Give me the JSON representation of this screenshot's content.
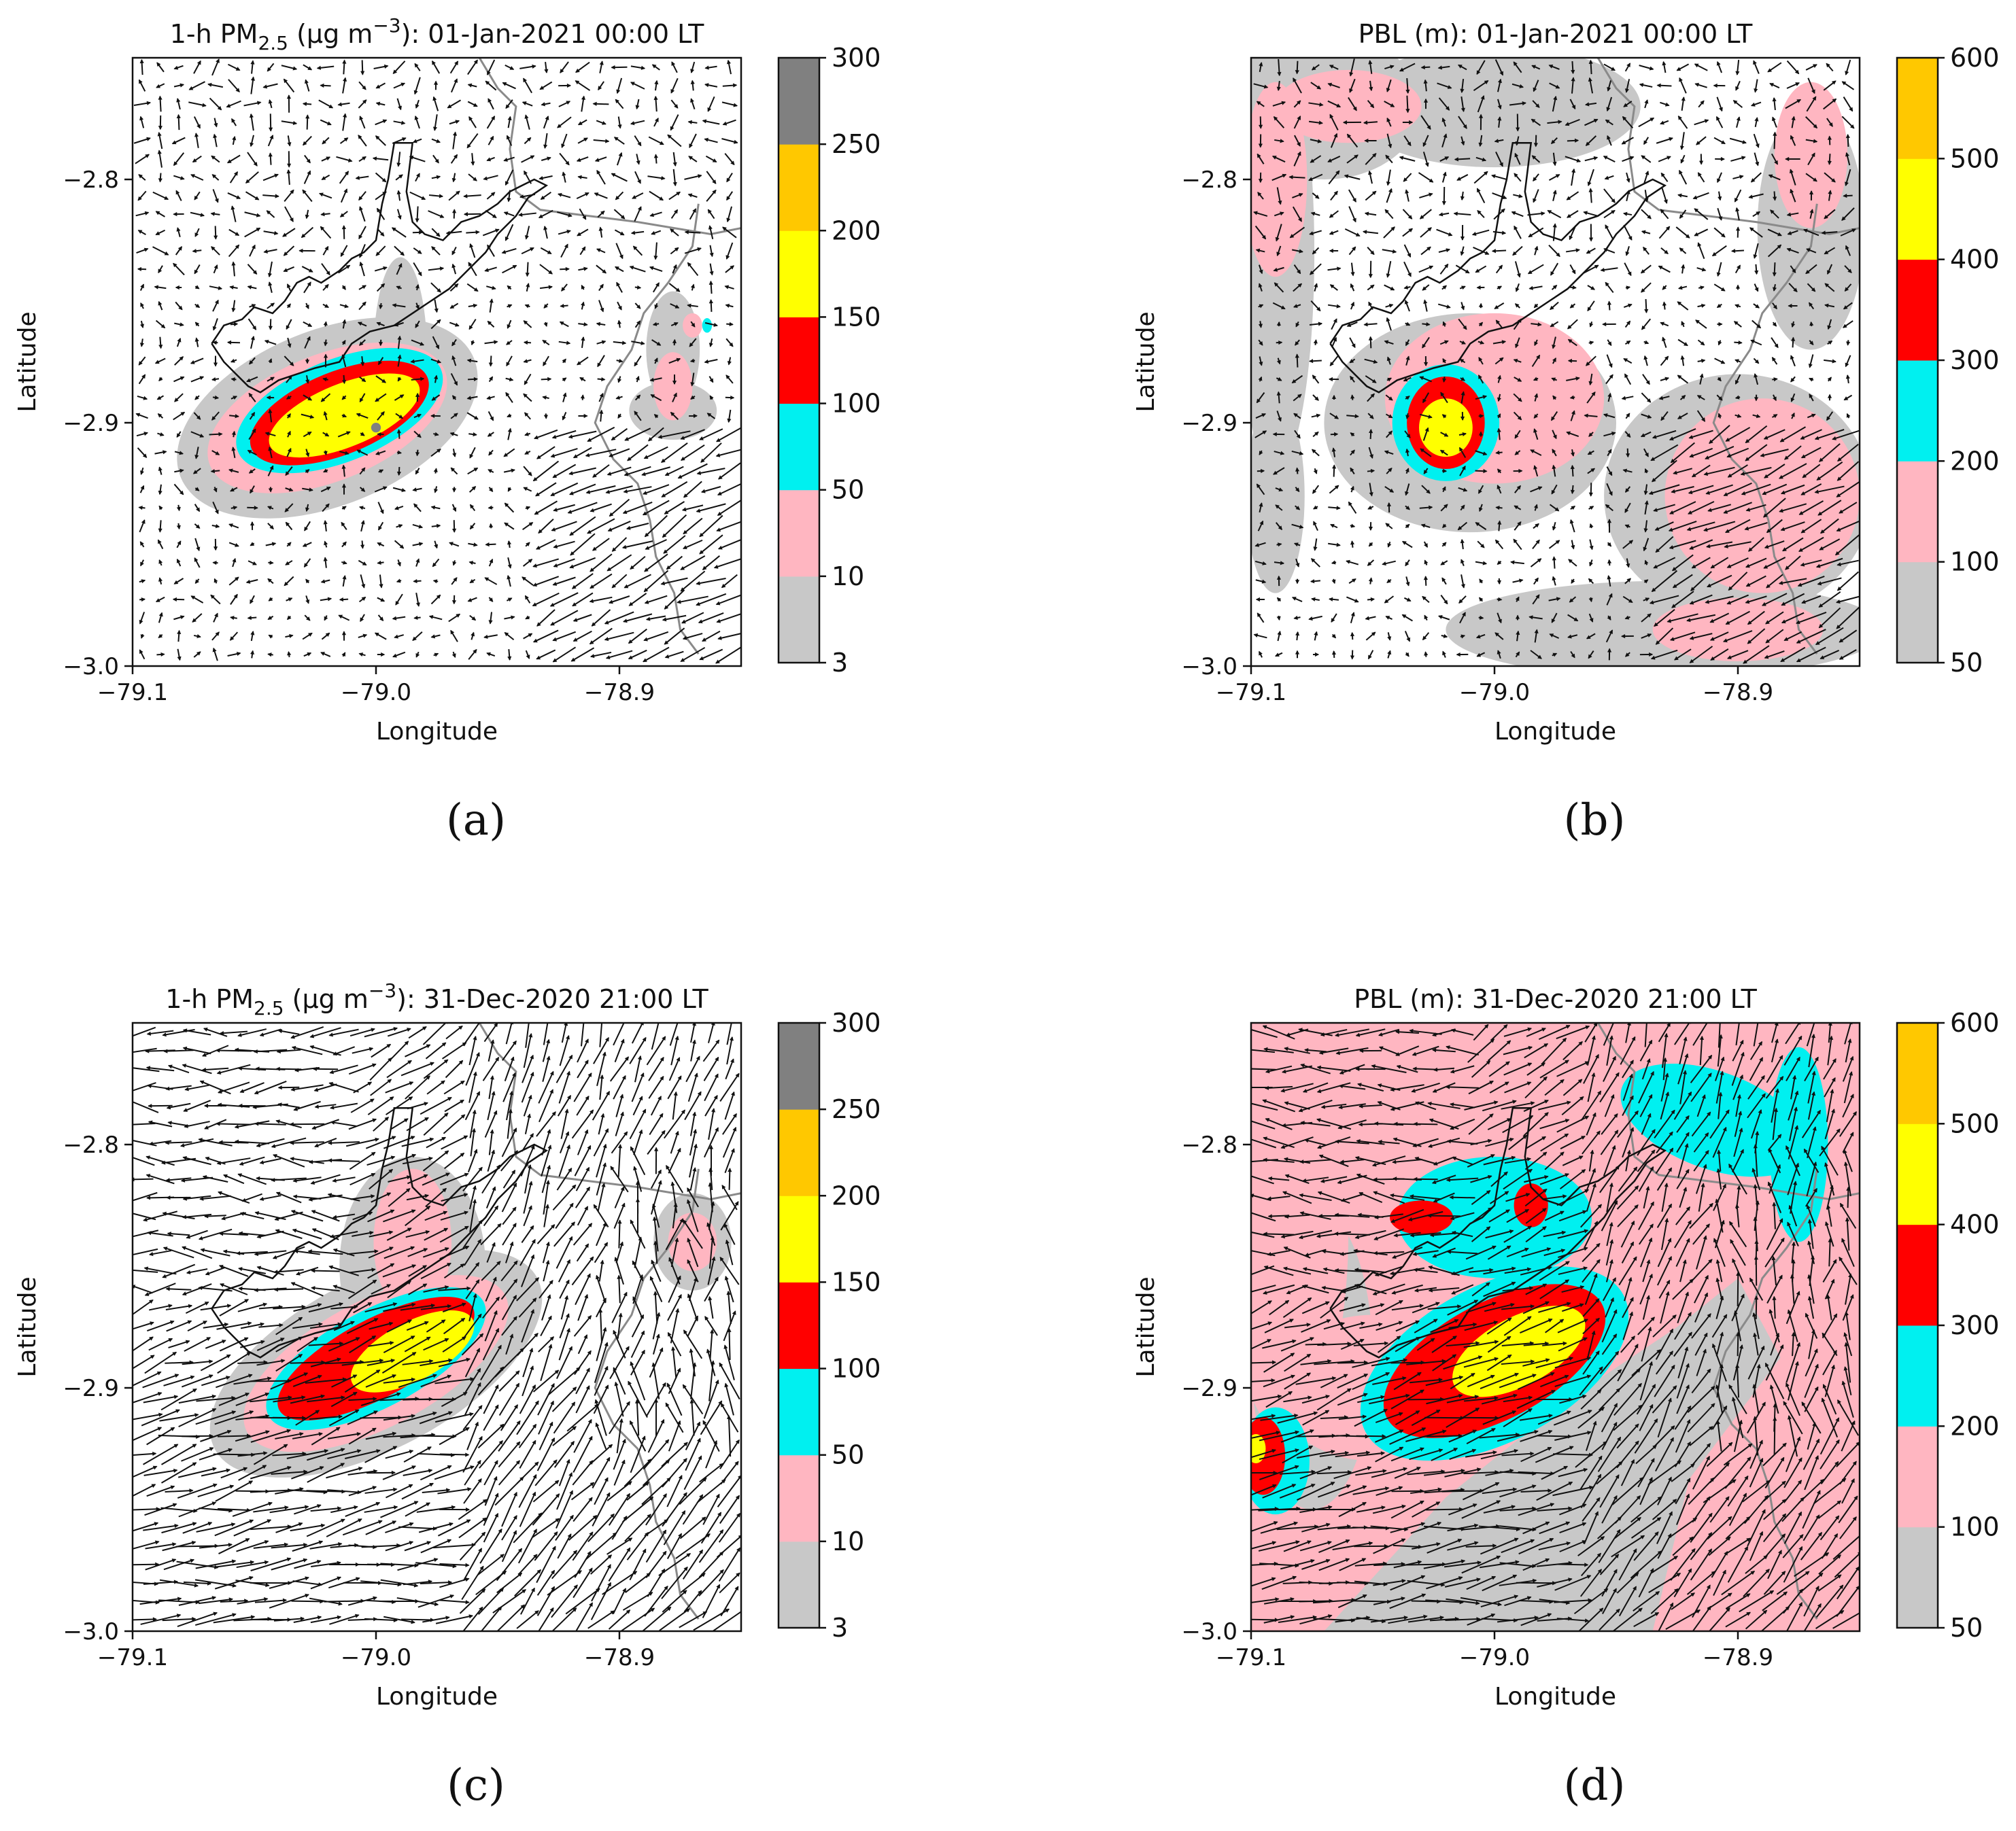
{
  "panels": [
    {
      "id": "a",
      "caption": "(a)",
      "title": {
        "prefix": "1-h PM",
        "sub": "2.5",
        "mid": " (µg m",
        "sup": "−3",
        "suffix": "): 01-Jan-2021 00:00 LT"
      },
      "variable": "PM2.5",
      "colorbar": {
        "ticks": [
          "300",
          "250",
          "200",
          "150",
          "100",
          "50",
          "10",
          "3"
        ],
        "colors": [
          "#c8c8c8",
          "#ffb6c1",
          "#00f0f0",
          "#ff0000",
          "#ffff00",
          "#ffc800",
          "#808080"
        ]
      }
    },
    {
      "id": "b",
      "caption": "(b)",
      "title": {
        "prefix": "PBL (m): 01-Jan-2021 00:00 LT",
        "sub": "",
        "mid": "",
        "sup": "",
        "suffix": ""
      },
      "variable": "PBL",
      "colorbar": {
        "ticks": [
          "600",
          "500",
          "400",
          "300",
          "200",
          "100",
          "50"
        ],
        "colors": [
          "#c8c8c8",
          "#ffb6c1",
          "#00f0f0",
          "#ff0000",
          "#ffff00",
          "#ffc800"
        ]
      }
    },
    {
      "id": "c",
      "caption": "(c)",
      "title": {
        "prefix": "1-h PM",
        "sub": "2.5",
        "mid": " (µg m",
        "sup": "−3",
        "suffix": "): 31-Dec-2020 21:00 LT"
      },
      "variable": "PM2.5",
      "colorbar": {
        "ticks": [
          "300",
          "250",
          "200",
          "150",
          "100",
          "50",
          "10",
          "3"
        ],
        "colors": [
          "#c8c8c8",
          "#ffb6c1",
          "#00f0f0",
          "#ff0000",
          "#ffff00",
          "#ffc800",
          "#808080"
        ]
      }
    },
    {
      "id": "d",
      "caption": "(d)",
      "title": {
        "prefix": "PBL (m): 31-Dec-2020 21:00 LT",
        "sub": "",
        "mid": "",
        "sup": "",
        "suffix": ""
      },
      "variable": "PBL",
      "colorbar": {
        "ticks": [
          "600",
          "500",
          "400",
          "300",
          "200",
          "100",
          "50"
        ],
        "colors": [
          "#c8c8c8",
          "#ffb6c1",
          "#00f0f0",
          "#ff0000",
          "#ffff00",
          "#ffc800"
        ]
      }
    }
  ],
  "chart_data": [
    {
      "type": "heatmap",
      "panel": "a",
      "title": "1-h PM2.5 (µg m−3): 01-Jan-2021 00:00 LT",
      "xlabel": "Longitude",
      "ylabel": "Latitude",
      "xlim": [
        -79.1,
        -78.85
      ],
      "ylim": [
        -3.0,
        -2.75
      ],
      "xticks": [
        -79.1,
        -79.0,
        -78.9
      ],
      "xtick_labels": [
        "−79.1",
        "−79.0",
        "−78.9"
      ],
      "yticks": [
        -3.0,
        -2.9,
        -2.8
      ],
      "ytick_labels": [
        "−3.0",
        "−2.9",
        "−2.8"
      ],
      "colorbar_levels": [
        3,
        10,
        50,
        100,
        150,
        200,
        250,
        300
      ],
      "wind": "weak",
      "pbl_tone": false,
      "blobs": [
        {
          "lon": -78.99,
          "lat": -2.872,
          "rlon": 0.011,
          "rlat": 0.04,
          "value": 8
        },
        {
          "lon": -79.02,
          "lat": -2.898,
          "rlon": 0.065,
          "rlat": 0.036,
          "value": 7,
          "angle": -22
        },
        {
          "lon": -78.878,
          "lat": -2.895,
          "rlon": 0.018,
          "rlat": 0.012,
          "value": 8
        },
        {
          "lon": -78.878,
          "lat": -2.87,
          "rlon": 0.011,
          "rlat": 0.024,
          "value": 8
        },
        {
          "lon": -79.02,
          "lat": -2.898,
          "rlon": 0.052,
          "rlat": 0.026,
          "value": 30,
          "angle": -22
        },
        {
          "lon": -78.878,
          "lat": -2.885,
          "rlon": 0.008,
          "rlat": 0.014,
          "value": 30
        },
        {
          "lon": -78.87,
          "lat": -2.86,
          "rlon": 0.004,
          "rlat": 0.005,
          "value": 30
        },
        {
          "lon": -79.015,
          "lat": -2.895,
          "rlon": 0.045,
          "rlat": 0.021,
          "value": 70,
          "angle": -22
        },
        {
          "lon": -78.864,
          "lat": -2.86,
          "rlon": 0.002,
          "rlat": 0.003,
          "value": 70
        },
        {
          "lon": -79.015,
          "lat": -2.896,
          "rlon": 0.039,
          "rlat": 0.017,
          "value": 120,
          "angle": -22
        },
        {
          "lon": -79.013,
          "lat": -2.897,
          "rlon": 0.033,
          "rlat": 0.013,
          "value": 170,
          "angle": -22
        },
        {
          "lon": -79.0,
          "lat": -2.902,
          "rlon": 0.002,
          "rlat": 0.002,
          "value": 275
        }
      ]
    },
    {
      "type": "heatmap",
      "panel": "b",
      "title": "PBL (m): 01-Jan-2021 00:00 LT",
      "xlabel": "Longitude",
      "ylabel": "Latitude",
      "xlim": [
        -79.1,
        -78.85
      ],
      "ylim": [
        -3.0,
        -2.75
      ],
      "xticks": [
        -79.1,
        -79.0,
        -78.9
      ],
      "xtick_labels": [
        "−79.1",
        "−79.0",
        "−78.9"
      ],
      "yticks": [
        -3.0,
        -2.9,
        -2.8
      ],
      "ytick_labels": [
        "−3.0",
        "−2.9",
        "−2.8"
      ],
      "colorbar_levels": [
        50,
        100,
        200,
        300,
        400,
        500,
        600
      ],
      "wind": "weak",
      "pbl_tone": false,
      "blobs": [
        {
          "lon": -79.09,
          "lat": -2.83,
          "rlon": 0.016,
          "rlat": 0.09,
          "value": 80
        },
        {
          "lon": -79.07,
          "lat": -2.77,
          "rlon": 0.04,
          "rlat": 0.03,
          "value": 80
        },
        {
          "lon": -79.0,
          "lat": -2.77,
          "rlon": 0.06,
          "rlat": 0.025,
          "value": 80
        },
        {
          "lon": -78.87,
          "lat": -2.82,
          "rlon": 0.022,
          "rlat": 0.05,
          "value": 80
        },
        {
          "lon": -78.9,
          "lat": -2.93,
          "rlon": 0.055,
          "rlat": 0.05,
          "value": 80
        },
        {
          "lon": -79.01,
          "lat": -2.9,
          "rlon": 0.06,
          "rlat": 0.045,
          "value": 80
        },
        {
          "lon": -78.93,
          "lat": -2.985,
          "rlon": 0.09,
          "rlat": 0.02,
          "value": 80
        },
        {
          "lon": -79.09,
          "lat": -2.93,
          "rlon": 0.012,
          "rlat": 0.04,
          "value": 80
        },
        {
          "lon": -79.09,
          "lat": -2.8,
          "rlon": 0.013,
          "rlat": 0.04,
          "value": 150
        },
        {
          "lon": -79.06,
          "lat": -2.77,
          "rlon": 0.03,
          "rlat": 0.015,
          "value": 150
        },
        {
          "lon": -78.87,
          "lat": -2.79,
          "rlon": 0.015,
          "rlat": 0.03,
          "value": 150
        },
        {
          "lon": -78.89,
          "lat": -2.93,
          "rlon": 0.04,
          "rlat": 0.04,
          "value": 150
        },
        {
          "lon": -79.0,
          "lat": -2.89,
          "rlon": 0.045,
          "rlat": 0.035,
          "value": 150
        },
        {
          "lon": -78.9,
          "lat": -2.985,
          "rlon": 0.035,
          "rlat": 0.013,
          "value": 150
        },
        {
          "lon": -79.02,
          "lat": -2.9,
          "rlon": 0.022,
          "rlat": 0.024,
          "value": 250
        },
        {
          "lon": -79.02,
          "lat": -2.9,
          "rlon": 0.016,
          "rlat": 0.019,
          "value": 350
        },
        {
          "lon": -79.02,
          "lat": -2.902,
          "rlon": 0.011,
          "rlat": 0.012,
          "value": 450
        }
      ]
    },
    {
      "type": "heatmap",
      "panel": "c",
      "title": "1-h PM2.5 (µg m−3): 31-Dec-2020 21:00 LT",
      "xlabel": "Longitude",
      "ylabel": "Latitude",
      "xlim": [
        -79.1,
        -78.85
      ],
      "ylim": [
        -3.0,
        -2.75
      ],
      "xticks": [
        -79.1,
        -79.0,
        -78.9
      ],
      "xtick_labels": [
        "−79.1",
        "−79.0",
        "−78.9"
      ],
      "yticks": [
        -3.0,
        -2.9,
        -2.8
      ],
      "ytick_labels": [
        "−3.0",
        "−2.9",
        "−2.8"
      ],
      "colorbar_levels": [
        3,
        10,
        50,
        100,
        150,
        200,
        250,
        300
      ],
      "wind": "strong",
      "pbl_tone": false,
      "blobs": [
        {
          "lon": -78.985,
          "lat": -2.85,
          "rlon": 0.03,
          "rlat": 0.045,
          "value": 8
        },
        {
          "lon": -79.0,
          "lat": -2.89,
          "rlon": 0.075,
          "rlat": 0.035,
          "value": 8,
          "angle": -28
        },
        {
          "lon": -78.87,
          "lat": -2.84,
          "rlon": 0.016,
          "rlat": 0.02,
          "value": 8
        },
        {
          "lon": -79.0,
          "lat": -2.89,
          "rlon": 0.06,
          "rlat": 0.026,
          "value": 30,
          "angle": -28
        },
        {
          "lon": -78.985,
          "lat": -2.84,
          "rlon": 0.016,
          "rlat": 0.03,
          "value": 30
        },
        {
          "lon": -78.87,
          "lat": -2.84,
          "rlon": 0.01,
          "rlat": 0.012,
          "value": 30
        },
        {
          "lon": -79.0,
          "lat": -2.888,
          "rlon": 0.05,
          "rlat": 0.02,
          "value": 70,
          "angle": -28
        },
        {
          "lon": -79.0,
          "lat": -2.888,
          "rlon": 0.045,
          "rlat": 0.016,
          "value": 120,
          "angle": -28
        },
        {
          "lon": -78.985,
          "lat": -2.885,
          "rlon": 0.028,
          "rlat": 0.012,
          "value": 170,
          "angle": -28
        }
      ]
    },
    {
      "type": "heatmap",
      "panel": "d",
      "title": "PBL (m): 31-Dec-2020 21:00 LT",
      "xlabel": "Longitude",
      "ylabel": "Latitude",
      "xlim": [
        -79.1,
        -78.85
      ],
      "ylim": [
        -3.0,
        -2.75
      ],
      "xticks": [
        -79.1,
        -79.0,
        -78.9
      ],
      "xtick_labels": [
        "−79.1",
        "−79.0",
        "−78.9"
      ],
      "yticks": [
        -3.0,
        -2.9,
        -2.8
      ],
      "ytick_labels": [
        "−3.0",
        "−2.9",
        "−2.8"
      ],
      "colorbar_levels": [
        50,
        100,
        200,
        300,
        400,
        500,
        600
      ],
      "wind": "strong",
      "pbl_tone": true,
      "blobs": [
        {
          "lon": -79.085,
          "lat": -2.835,
          "rlon": 0.025,
          "rlat": 0.085,
          "value": 150
        },
        {
          "lon": -78.975,
          "lat": -2.78,
          "rlon": 0.12,
          "rlat": 0.03,
          "value": 150
        },
        {
          "lon": -79.05,
          "lat": -2.9,
          "rlon": 0.04,
          "rlat": 0.03,
          "value": 150
        },
        {
          "lon": -78.86,
          "lat": -2.94,
          "rlon": 0.02,
          "rlat": 0.04,
          "value": 150
        },
        {
          "lon": -79.0,
          "lat": -2.83,
          "rlon": 0.04,
          "rlat": 0.025,
          "value": 250
        },
        {
          "lon": -78.91,
          "lat": -2.79,
          "rlon": 0.04,
          "rlat": 0.02,
          "value": 250,
          "angle": 20
        },
        {
          "lon": -78.875,
          "lat": -2.8,
          "rlon": 0.012,
          "rlat": 0.04,
          "value": 250
        },
        {
          "lon": -79.0,
          "lat": -2.89,
          "rlon": 0.06,
          "rlat": 0.032,
          "value": 250,
          "angle": -28
        },
        {
          "lon": -79.09,
          "lat": -2.93,
          "rlon": 0.014,
          "rlat": 0.022,
          "value": 250
        },
        {
          "lon": -79.03,
          "lat": -2.83,
          "rlon": 0.013,
          "rlat": 0.007,
          "value": 350
        },
        {
          "lon": -78.985,
          "lat": -2.825,
          "rlon": 0.007,
          "rlat": 0.009,
          "value": 350
        },
        {
          "lon": -79.0,
          "lat": -2.889,
          "rlon": 0.05,
          "rlat": 0.024,
          "value": 350,
          "angle": -28
        },
        {
          "lon": -79.095,
          "lat": -2.928,
          "rlon": 0.009,
          "rlat": 0.016,
          "value": 350
        },
        {
          "lon": -78.99,
          "lat": -2.885,
          "rlon": 0.03,
          "rlat": 0.014,
          "value": 450,
          "angle": -28
        },
        {
          "lon": -79.098,
          "lat": -2.925,
          "rlon": 0.004,
          "rlat": 0.006,
          "value": 450
        }
      ]
    }
  ]
}
